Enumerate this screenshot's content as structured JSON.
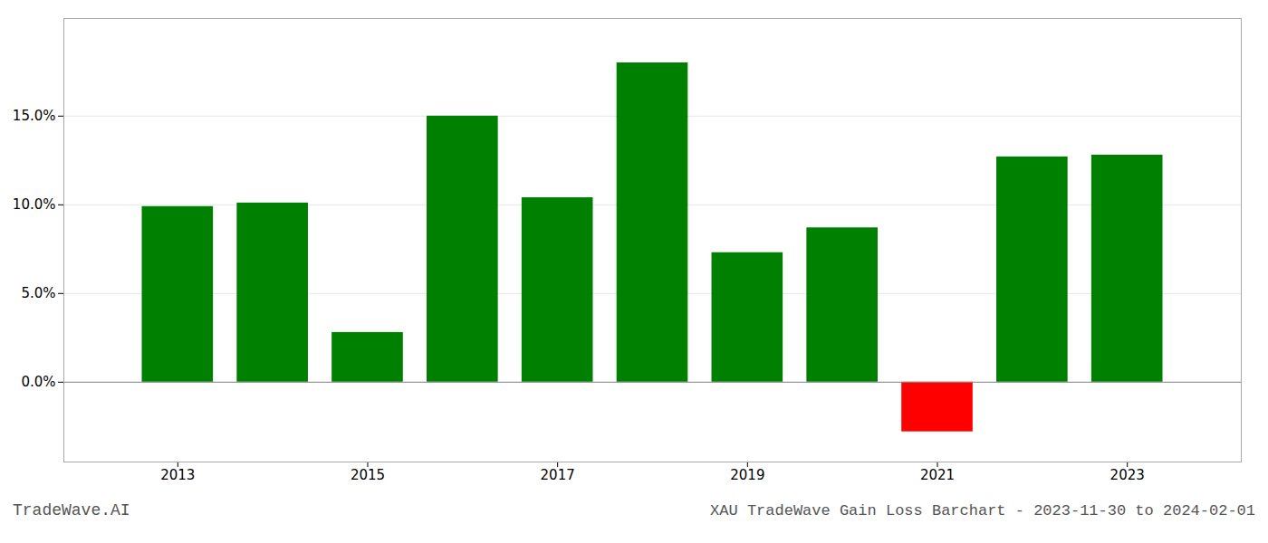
{
  "chart_data": {
    "type": "bar",
    "title": "XAU TradeWave Gain Loss Barchart - 2023-11-30 to 2024-02-01",
    "annotations": [
      "TradeWave.AI"
    ],
    "x": [
      2013,
      2014,
      2015,
      2016,
      2017,
      2018,
      2019,
      2020,
      2021,
      2022,
      2023
    ],
    "values": [
      9.9,
      10.1,
      2.8,
      15.0,
      10.4,
      18.0,
      7.3,
      8.7,
      -2.8,
      12.7,
      12.8
    ],
    "colors": [
      "#008000",
      "#008000",
      "#008000",
      "#008000",
      "#008000",
      "#008000",
      "#008000",
      "#008000",
      "#ff0000",
      "#008000",
      "#008000"
    ],
    "xlim": [
      2011.8,
      2024.2
    ],
    "xticks": [
      2013,
      2015,
      2017,
      2019,
      2021,
      2023
    ],
    "ylim": [
      -4.5,
      20.5
    ],
    "yticks": [
      {
        "value": 0.0,
        "label": "0.0%"
      },
      {
        "value": 5.0,
        "label": "5.0%"
      },
      {
        "value": 10.0,
        "label": "10.0%"
      },
      {
        "value": 15.0,
        "label": "15.0%"
      }
    ],
    "grid": true
  }
}
